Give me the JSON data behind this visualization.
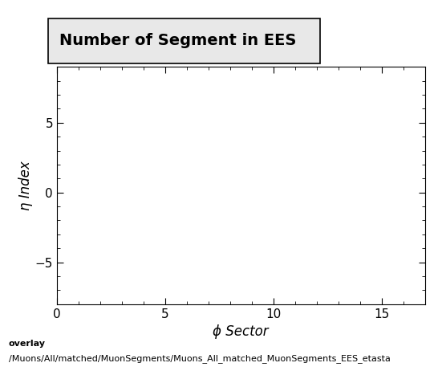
{
  "title": "Number of Segment in EES",
  "xlabel": "ϕ Sector",
  "ylabel": "η Index",
  "xlim": [
    0,
    17
  ],
  "ylim": [
    -8,
    9
  ],
  "xticks": [
    0,
    5,
    10,
    15
  ],
  "yticks": [
    -5,
    0,
    5
  ],
  "caption_line1": "overlay",
  "caption_line2": "/Muons/All/matched/MuonSegments/Muons_All_matched_MuonSegments_EES_etasta",
  "background_color": "#ffffff",
  "plot_bg_color": "#ffffff",
  "title_fontsize": 14,
  "axis_label_fontsize": 12,
  "tick_fontsize": 11,
  "caption_fontsize": 8,
  "title_box_facecolor": "#e8e8e8"
}
